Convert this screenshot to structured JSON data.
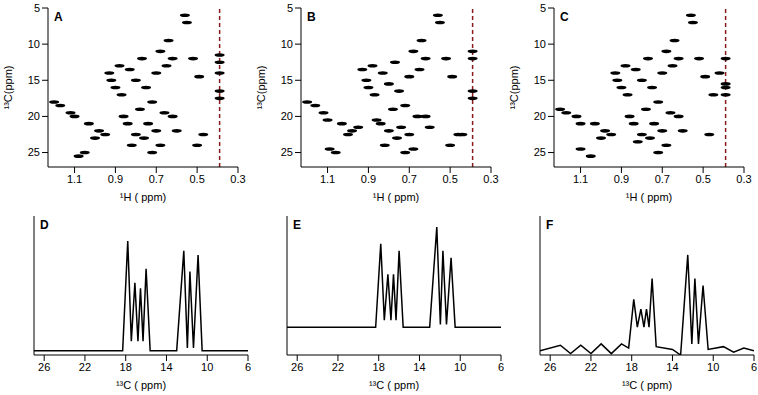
{
  "chart_data": [
    {
      "type": "scatter",
      "title": "A",
      "xlabel": "¹H ( ppm)",
      "ylabel": "¹³C(ppm)",
      "x": [
        1.2,
        1.17,
        1.12,
        1.1,
        1.08,
        1.05,
        1.03,
        1.0,
        0.98,
        0.95,
        0.93,
        0.92,
        0.9,
        0.88,
        0.87,
        0.86,
        0.84,
        0.83,
        0.82,
        0.8,
        0.8,
        0.78,
        0.77,
        0.76,
        0.75,
        0.74,
        0.72,
        0.72,
        0.7,
        0.7,
        0.68,
        0.68,
        0.66,
        0.65,
        0.64,
        0.62,
        0.62,
        0.6,
        0.56,
        0.55,
        0.52,
        0.49,
        0.5,
        0.47,
        0.39,
        0.39,
        0.39,
        0.39,
        0.39
      ],
      "values": [
        18,
        18.5,
        19.5,
        20,
        25.5,
        25,
        21,
        23,
        22,
        22.5,
        14,
        15,
        16,
        13,
        17,
        20,
        21,
        13.5,
        24,
        22.5,
        15,
        19,
        12,
        23,
        16,
        21,
        25,
        18,
        14,
        22,
        11,
        24,
        19.5,
        13,
        9.5,
        12,
        20,
        22,
        6,
        7,
        12,
        14.5,
        24,
        22.5,
        11.5,
        12.5,
        14,
        16.5,
        17.5
      ],
      "xlim": [
        1.23,
        0.3
      ],
      "xticks": [
        1.1,
        0.9,
        0.7,
        0.5,
        0.3
      ],
      "ylim": [
        5,
        27
      ],
      "yticks": [
        5,
        10,
        15,
        20,
        25
      ],
      "vline": 0.39,
      "color": "#000000",
      "marker": "ellipse"
    },
    {
      "type": "scatter",
      "title": "B",
      "xlabel": "¹H ( ppm)",
      "ylabel": "¹³C(ppm)",
      "x": [
        1.2,
        1.16,
        1.12,
        1.1,
        1.09,
        1.06,
        1.03,
        1.0,
        0.98,
        0.95,
        0.93,
        0.91,
        0.9,
        0.88,
        0.87,
        0.86,
        0.84,
        0.83,
        0.82,
        0.8,
        0.8,
        0.78,
        0.77,
        0.76,
        0.75,
        0.74,
        0.72,
        0.72,
        0.7,
        0.7,
        0.68,
        0.68,
        0.66,
        0.65,
        0.64,
        0.62,
        0.62,
        0.6,
        0.56,
        0.55,
        0.52,
        0.49,
        0.5,
        0.46,
        0.39,
        0.39,
        0.39,
        0.39,
        0.44
      ],
      "values": [
        18,
        18.5,
        19.5,
        20.5,
        24.5,
        25,
        21,
        22.5,
        22,
        21.5,
        13.5,
        15,
        16,
        13,
        17,
        20.5,
        21,
        14,
        24,
        22,
        15.5,
        19,
        12.5,
        23,
        16.5,
        21.5,
        25,
        18.5,
        14.5,
        22.5,
        11,
        24.5,
        20,
        13.5,
        9.5,
        12,
        20,
        21.5,
        6,
        7,
        12,
        14.5,
        24,
        22.5,
        11,
        12,
        16.5,
        17.5,
        22.5
      ],
      "xlim": [
        1.23,
        0.3
      ],
      "xticks": [
        1.1,
        0.9,
        0.7,
        0.5,
        0.3
      ],
      "ylim": [
        5,
        27
      ],
      "yticks": [
        5,
        10,
        15,
        20,
        25
      ],
      "vline": 0.39,
      "color": "#000000",
      "marker": "ellipse"
    },
    {
      "type": "scatter",
      "title": "C",
      "xlabel": "¹H ( ppm)",
      "ylabel": "¹³C(ppm)",
      "x": [
        1.2,
        1.17,
        1.12,
        1.1,
        1.1,
        1.05,
        1.03,
        1.0,
        0.98,
        0.95,
        0.93,
        0.92,
        0.9,
        0.88,
        0.87,
        0.86,
        0.84,
        0.83,
        0.82,
        0.8,
        0.8,
        0.78,
        0.77,
        0.76,
        0.75,
        0.74,
        0.72,
        0.72,
        0.7,
        0.7,
        0.68,
        0.68,
        0.66,
        0.65,
        0.64,
        0.62,
        0.62,
        0.6,
        0.56,
        0.55,
        0.52,
        0.49,
        0.45,
        0.47,
        0.39,
        0.39,
        0.39,
        0.39,
        0.42
      ],
      "values": [
        19,
        19.5,
        20,
        21,
        24.5,
        25.5,
        21,
        23,
        22,
        22.5,
        14,
        15,
        16,
        13,
        17,
        20,
        21,
        13.5,
        23.5,
        22.5,
        15,
        19,
        12,
        23,
        16,
        21,
        25,
        18,
        14,
        22,
        11,
        24,
        19.5,
        13,
        9.5,
        12,
        20,
        22,
        6,
        7,
        12,
        14.5,
        17,
        22.5,
        12,
        15.5,
        16,
        17,
        14
      ],
      "xlim": [
        1.23,
        0.3
      ],
      "xticks": [
        1.1,
        0.9,
        0.7,
        0.5,
        0.3
      ],
      "ylim": [
        5,
        27
      ],
      "yticks": [
        5,
        10,
        15,
        20,
        25
      ],
      "vline": 0.39,
      "color": "#000000",
      "marker": "ellipse"
    },
    {
      "type": "line",
      "title": "D",
      "xlabel": "¹³C ( ppm)",
      "x": [
        27,
        18.3,
        17.8,
        17.45,
        17.1,
        16.8,
        16.55,
        16.3,
        16.0,
        15.6,
        13.0,
        12.3,
        11.95,
        11.7,
        11.35,
        10.9,
        10.5,
        6
      ],
      "values": [
        0.03,
        0.03,
        0.82,
        0.1,
        0.52,
        0.1,
        0.48,
        0.1,
        0.62,
        0.03,
        0.03,
        0.75,
        0.05,
        0.6,
        0.05,
        0.72,
        0.03,
        0.03
      ],
      "xlim": [
        27,
        6
      ],
      "xticks": [
        26,
        22,
        18,
        14,
        10,
        6
      ],
      "ylim": [
        0,
        1
      ],
      "tick_labels": "x",
      "color": "#000000"
    },
    {
      "type": "line",
      "title": "E",
      "xlabel": "¹³C ( ppm)",
      "x": [
        27,
        18.3,
        17.8,
        17.45,
        17.1,
        16.8,
        16.55,
        16.3,
        16.0,
        15.6,
        13.0,
        12.3,
        11.95,
        11.7,
        11.35,
        10.9,
        10.5,
        6
      ],
      "values": [
        0.2,
        0.2,
        0.8,
        0.25,
        0.58,
        0.25,
        0.58,
        0.25,
        0.75,
        0.2,
        0.2,
        0.92,
        0.22,
        0.75,
        0.22,
        0.7,
        0.2,
        0.2
      ],
      "xlim": [
        27,
        6
      ],
      "xticks": [
        26,
        22,
        18,
        14,
        10,
        6
      ],
      "ylim": [
        0,
        1
      ],
      "tick_labels": "x",
      "color": "#000000"
    },
    {
      "type": "line",
      "title": "F",
      "xlabel": "¹³C ( ppm)",
      "x": [
        27,
        25,
        24,
        23,
        22,
        21,
        20,
        19,
        18.3,
        17.8,
        17.45,
        17.1,
        16.8,
        16.55,
        16.3,
        16.0,
        15.6,
        14,
        13.2,
        12.5,
        12.1,
        11.8,
        11.45,
        11.0,
        10.5,
        9,
        8,
        7,
        6
      ],
      "values": [
        0.03,
        0.07,
        0.01,
        0.07,
        0.01,
        0.08,
        0.01,
        0.08,
        0.05,
        0.4,
        0.2,
        0.33,
        0.2,
        0.33,
        0.2,
        0.55,
        0.06,
        0.04,
        0.0,
        0.72,
        0.08,
        0.55,
        0.08,
        0.5,
        0.04,
        0.06,
        0.02,
        0.05,
        0.03
      ],
      "xlim": [
        27,
        6
      ],
      "xticks": [
        26,
        22,
        18,
        14,
        10,
        6
      ],
      "ylim": [
        0,
        1
      ],
      "tick_labels": "x",
      "color": "#000000"
    }
  ]
}
